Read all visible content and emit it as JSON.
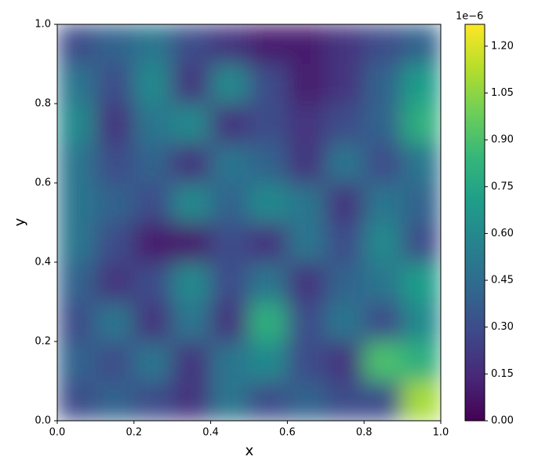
{
  "chart_data": {
    "type": "heatmap",
    "xlabel": "x",
    "ylabel": "y",
    "x": [
      0.05,
      0.15,
      0.25,
      0.35,
      0.45,
      0.55,
      0.65,
      0.75,
      0.85,
      0.95
    ],
    "y": [
      0.05,
      0.15,
      0.25,
      0.35,
      0.45,
      0.55,
      0.65,
      0.75,
      0.85,
      0.95
    ],
    "z": [
      [
        0.3,
        0.4,
        0.3,
        0.2,
        0.5,
        0.3,
        0.4,
        0.3,
        0.3,
        1.1
      ],
      [
        0.4,
        0.3,
        0.5,
        0.2,
        0.5,
        0.6,
        0.3,
        0.2,
        0.9,
        0.8
      ],
      [
        0.3,
        0.5,
        0.2,
        0.5,
        0.2,
        0.8,
        0.3,
        0.5,
        0.3,
        0.6
      ],
      [
        0.4,
        0.2,
        0.3,
        0.6,
        0.3,
        0.5,
        0.2,
        0.4,
        0.5,
        0.7
      ],
      [
        0.5,
        0.3,
        0.1,
        0.1,
        0.3,
        0.2,
        0.5,
        0.3,
        0.6,
        0.3
      ],
      [
        0.5,
        0.4,
        0.3,
        0.6,
        0.4,
        0.6,
        0.5,
        0.2,
        0.5,
        0.4
      ],
      [
        0.5,
        0.3,
        0.4,
        0.2,
        0.5,
        0.4,
        0.2,
        0.5,
        0.3,
        0.5
      ],
      [
        0.6,
        0.2,
        0.5,
        0.6,
        0.2,
        0.3,
        0.2,
        0.3,
        0.4,
        0.8
      ],
      [
        0.5,
        0.3,
        0.6,
        0.2,
        0.6,
        0.3,
        0.1,
        0.2,
        0.4,
        0.7
      ],
      [
        0.3,
        0.4,
        0.5,
        0.3,
        0.2,
        0.1,
        0.1,
        0.2,
        0.3,
        0.4
      ]
    ],
    "xlim": [
      0,
      1
    ],
    "ylim": [
      0,
      1
    ],
    "xticks": [
      {
        "value": 0,
        "label": "0.0"
      },
      0.2,
      0.4,
      0.6,
      0.8,
      {
        "value": 1,
        "label": "1.0"
      }
    ],
    "yticks": [
      {
        "value": 0,
        "label": "0.0"
      },
      0.2,
      0.4,
      0.6,
      0.8,
      {
        "value": 1,
        "label": "1.0"
      }
    ],
    "clim": [
      0,
      1.27
    ],
    "cticks": [
      {
        "value": 0,
        "label": "0.00"
      },
      0.15,
      {
        "value": 0.3,
        "label": "0.30"
      },
      0.45,
      {
        "value": 0.6,
        "label": "0.60"
      },
      0.75,
      {
        "value": 0.9,
        "label": "0.90"
      },
      1.05,
      {
        "value": 1.2,
        "label": "1.20"
      }
    ],
    "colorbar_offset": "1e−6",
    "colormap": [
      "#440154",
      "#482878",
      "#3e4989",
      "#31688e",
      "#26828e",
      "#1f9e89",
      "#35b779",
      "#6ece58",
      "#b5de2b",
      "#fde725"
    ]
  }
}
